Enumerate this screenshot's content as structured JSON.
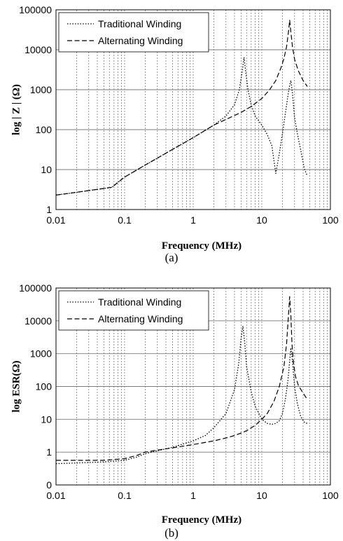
{
  "chart_data": [
    {
      "type": "line",
      "panel": "(a)",
      "xlabel": "Frequency (MHz)",
      "ylabel": "log | Z | (Ω)",
      "xscale": "log",
      "yscale": "log",
      "xlim": [
        0.01,
        100
      ],
      "ylim": [
        1,
        100000
      ],
      "xticks": [
        "0.01",
        "0.1",
        "1",
        "10",
        "100"
      ],
      "yticks": [
        "1",
        "10",
        "100",
        "1000",
        "10000",
        "100000"
      ],
      "grid": "vertical minor + horizontal major",
      "legend": "top-left",
      "series": [
        {
          "name": "Traditional Winding",
          "style": "dotted",
          "x": [
            0.01,
            0.02,
            0.04,
            0.065,
            0.1,
            0.2,
            0.5,
            1,
            2,
            3,
            4,
            4.7,
            5.2,
            5.5,
            5.8,
            6.3,
            7,
            8,
            10,
            12,
            14,
            16,
            18,
            20,
            22,
            24,
            25.5,
            26.5,
            28,
            30,
            33,
            37,
            42,
            46
          ],
          "y": [
            2.3,
            2.7,
            3.2,
            3.6,
            6.5,
            13,
            32,
            63,
            130,
            220,
            420,
            1000,
            3000,
            6500,
            3000,
            1000,
            420,
            220,
            130,
            75,
            40,
            8,
            25,
            80,
            250,
            700,
            1300,
            1700,
            800,
            200,
            80,
            30,
            10,
            7
          ]
        },
        {
          "name": "Alternating Winding",
          "style": "dashed",
          "x": [
            0.01,
            0.02,
            0.04,
            0.065,
            0.1,
            0.2,
            0.5,
            1,
            2,
            3,
            5,
            7,
            10,
            13,
            16,
            19,
            21,
            23,
            24.5,
            25.5,
            26.5,
            28,
            30,
            34,
            40,
            46
          ],
          "y": [
            2.3,
            2.7,
            3.2,
            3.6,
            6.5,
            13,
            32,
            63,
            130,
            180,
            270,
            380,
            600,
            1000,
            1700,
            3500,
            6000,
            12000,
            28000,
            55000,
            28000,
            12000,
            5800,
            3000,
            1700,
            1200
          ]
        }
      ]
    },
    {
      "type": "line",
      "panel": "(b)",
      "xlabel": "Frequency (MHz)",
      "ylabel": "log  ESR(Ω)",
      "xscale": "log",
      "yscale": "log",
      "xlim": [
        0.01,
        100
      ],
      "ylim": [
        0,
        100000
      ],
      "xticks": [
        "0.01",
        "0.1",
        "1",
        "10",
        "100"
      ],
      "yticks": [
        "0",
        "1",
        "10",
        "100",
        "1000",
        "10000",
        "100000"
      ],
      "grid": "vertical minor + horizontal major",
      "legend": "top-left",
      "series": [
        {
          "name": "Traditional Winding",
          "style": "dotted",
          "x": [
            0.01,
            0.02,
            0.05,
            0.1,
            0.15,
            0.2,
            0.3,
            0.5,
            1,
            1.5,
            2,
            3,
            4,
            4.6,
            5,
            5.3,
            5.6,
            6,
            7,
            8,
            10,
            12,
            14,
            16,
            18,
            20,
            22,
            24,
            25.5,
            26.5,
            28,
            30,
            33,
            37,
            42,
            46
          ],
          "y": [
            0.65,
            0.67,
            0.7,
            0.75,
            0.85,
            0.95,
            1.1,
            1.4,
            2.2,
            3.2,
            5.5,
            15,
            80,
            500,
            3000,
            7000,
            2500,
            400,
            70,
            25,
            10,
            7.5,
            7,
            7.5,
            9,
            15,
            40,
            150,
            600,
            1500,
            600,
            100,
            30,
            12,
            8,
            7.5
          ]
        },
        {
          "name": "Alternating Winding",
          "style": "dashed",
          "x": [
            0.01,
            0.02,
            0.05,
            0.1,
            0.15,
            0.2,
            0.3,
            0.5,
            1,
            2,
            3,
            4,
            5,
            6,
            7,
            8,
            10,
            12,
            15,
            18,
            21,
            23,
            24.5,
            25.5,
            26.5,
            27.5,
            29,
            31,
            34,
            38,
            43,
            46
          ],
          "y": [
            0.75,
            0.75,
            0.75,
            0.8,
            0.9,
            1.0,
            1.15,
            1.35,
            1.7,
            2.2,
            2.7,
            3.2,
            3.8,
            4.5,
            5.5,
            6.5,
            10,
            15,
            35,
            100,
            400,
            2000,
            15000,
            55000,
            15000,
            2000,
            500,
            200,
            110,
            75,
            50,
            40
          ]
        }
      ]
    }
  ],
  "captions": [
    "(a)",
    "(b)"
  ]
}
